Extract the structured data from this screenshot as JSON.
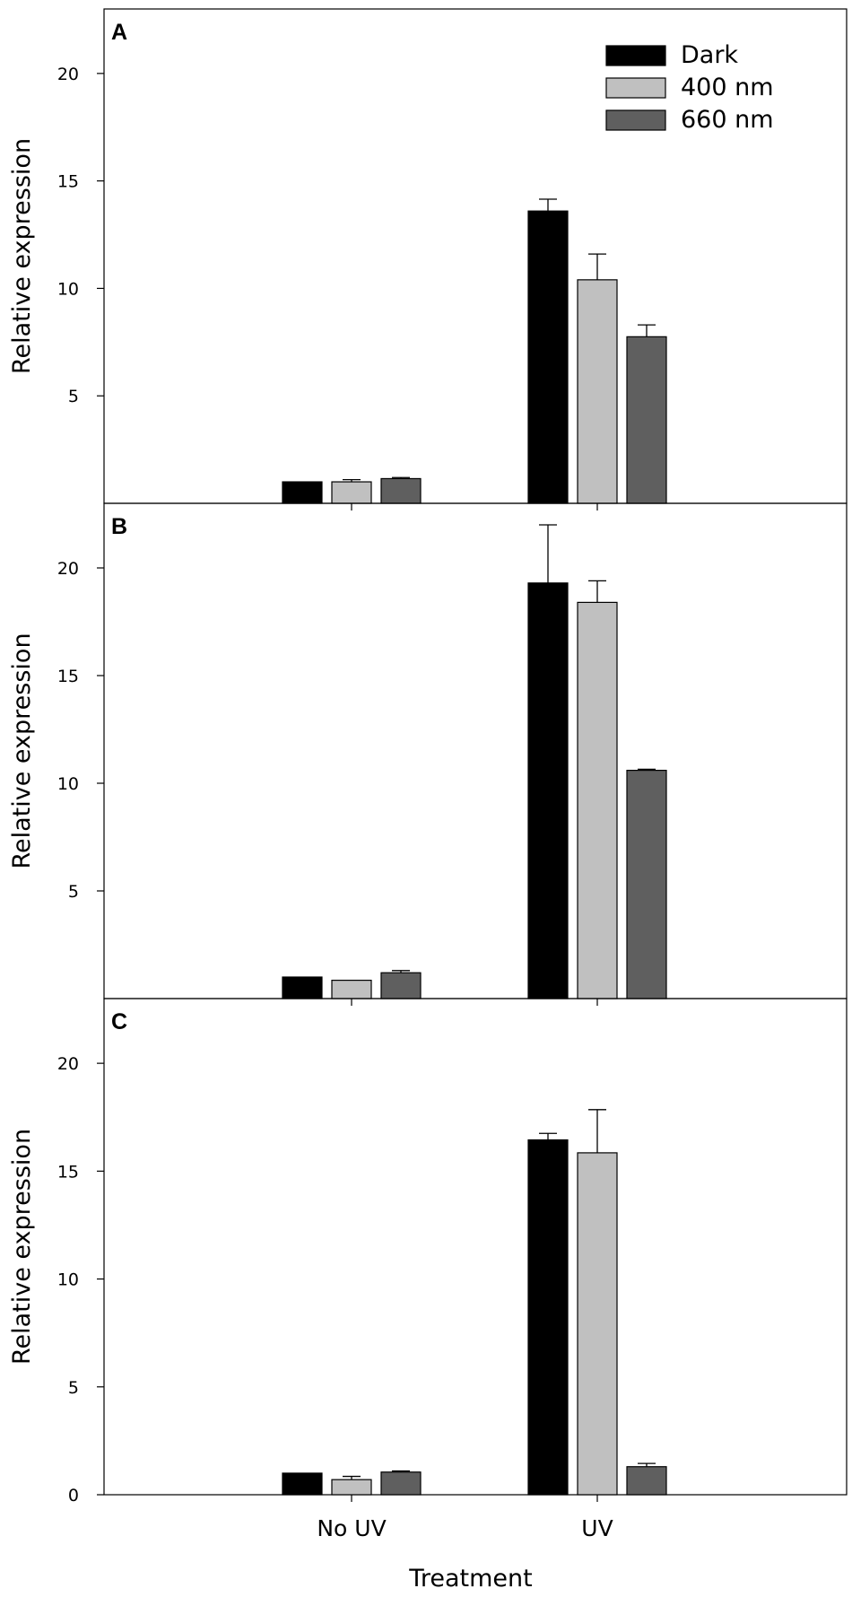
{
  "chart_data": [
    {
      "type": "bar",
      "panel_label": "A",
      "categories": [
        "No UV",
        "UV"
      ],
      "ylabel": "Relative expression",
      "ylim": [
        0,
        23
      ],
      "yticks": [
        5,
        10,
        15,
        20
      ],
      "legend": "top-right",
      "series": [
        {
          "name": "Dark",
          "color": "#000000",
          "values": [
            1.0,
            13.6
          ],
          "errors": [
            0.0,
            0.55
          ]
        },
        {
          "name": "400 nm",
          "color": "#c0c0c0",
          "values": [
            1.0,
            10.4
          ],
          "errors": [
            0.1,
            1.2
          ]
        },
        {
          "name": "660 nm",
          "color": "#5f5f5f",
          "values": [
            1.15,
            7.75
          ],
          "errors": [
            0.05,
            0.55
          ]
        }
      ]
    },
    {
      "type": "bar",
      "panel_label": "B",
      "categories": [
        "No UV",
        "UV"
      ],
      "ylabel": "Relative expression",
      "ylim": [
        0,
        23
      ],
      "yticks": [
        5,
        10,
        15,
        20
      ],
      "series": [
        {
          "name": "Dark",
          "color": "#000000",
          "values": [
            1.0,
            19.3
          ],
          "errors": [
            0.0,
            2.7
          ]
        },
        {
          "name": "400 nm",
          "color": "#c0c0c0",
          "values": [
            0.85,
            18.4
          ],
          "errors": [
            0.0,
            1.0
          ]
        },
        {
          "name": "660 nm",
          "color": "#5f5f5f",
          "values": [
            1.2,
            10.6
          ],
          "errors": [
            0.1,
            0.05
          ]
        }
      ]
    },
    {
      "type": "bar",
      "panel_label": "C",
      "categories": [
        "No UV",
        "UV"
      ],
      "xlabel": "Treatment",
      "ylabel": "Relative expression",
      "ylim": [
        0,
        23
      ],
      "yticks": [
        0,
        5,
        10,
        15,
        20
      ],
      "series": [
        {
          "name": "Dark",
          "color": "#000000",
          "values": [
            1.0,
            16.45
          ],
          "errors": [
            0.0,
            0.3
          ]
        },
        {
          "name": "400 nm",
          "color": "#c0c0c0",
          "values": [
            0.7,
            15.85
          ],
          "errors": [
            0.15,
            2.0
          ]
        },
        {
          "name": "660 nm",
          "color": "#5f5f5f",
          "values": [
            1.05,
            1.3
          ],
          "errors": [
            0.05,
            0.15
          ]
        }
      ]
    }
  ]
}
